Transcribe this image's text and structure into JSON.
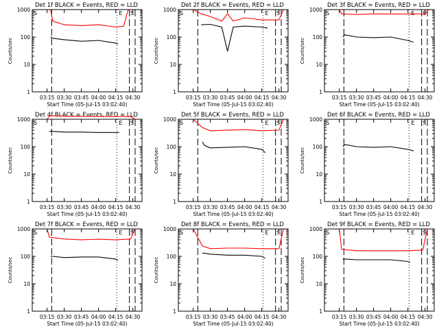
{
  "start_time_label": "Start Time (05-Jul-15 03:02:40)",
  "x_tick_labels": [
    "03:15",
    "03:30",
    "03:45",
    "04:00",
    "04:15",
    "04:30"
  ],
  "y_tick_labels": [
    "1",
    "10",
    "100",
    "1000"
  ],
  "ylabel": "Counts/sec",
  "colors": {
    "events": "#000000",
    "lld": "#ff0000"
  },
  "chart_data": [
    {
      "type": "line",
      "title": "Det 1f BLACK = Events, RED = LLD",
      "markers": {
        "S1": "S",
        "E": "E",
        "S2": "S"
      },
      "xlabel": "Start Time (05-Jul-15 03:02:40)",
      "ylabel": "Counts/sec",
      "ylim": [
        1,
        1000
      ],
      "yscale": "log",
      "series": [
        {
          "color": "red",
          "x": [
            "03:18",
            "03:20",
            "03:30",
            "03:45",
            "04:00",
            "04:15",
            "04:22",
            "04:26"
          ],
          "values": [
            1000,
            380,
            280,
            260,
            280,
            230,
            250,
            1000
          ]
        },
        {
          "color": "black",
          "x": [
            "03:18",
            "03:20",
            "03:30",
            "03:45",
            "04:00",
            "04:15",
            "04:17"
          ],
          "values": [
            100,
            90,
            80,
            70,
            75,
            60,
            55
          ]
        }
      ]
    },
    {
      "type": "line",
      "title": "Det 2f BLACK = Events, RED = LLD",
      "markers": {
        "S1": "S",
        "E": "E",
        "S2": "S"
      },
      "xlabel": "Start Time (05-Jul-15 03:02:40)",
      "ylabel": "Counts/sec",
      "ylim": [
        1,
        1000
      ],
      "yscale": "log",
      "series": [
        {
          "color": "red",
          "x": [
            "03:15",
            "03:22",
            "03:30",
            "03:40",
            "03:45",
            "03:50",
            "04:00",
            "04:15",
            "04:30",
            "04:34"
          ],
          "values": [
            1000,
            700,
            560,
            380,
            700,
            380,
            500,
            420,
            420,
            1000
          ]
        },
        {
          "color": "black",
          "x": [
            "03:22",
            "03:30",
            "03:40",
            "03:45",
            "03:50",
            "04:00",
            "04:15",
            "04:20"
          ],
          "values": [
            280,
            290,
            230,
            30,
            230,
            250,
            230,
            210
          ]
        }
      ]
    },
    {
      "type": "line",
      "title": "Det 3f BLACK = Events, RED = LLD",
      "markers": {
        "S1": "S",
        "E": "E",
        "S2": "S"
      },
      "xlabel": "Start Time (05-Jul-15 03:02:40)",
      "ylabel": "Counts/sec",
      "ylim": [
        1,
        1000
      ],
      "yscale": "log",
      "series": [
        {
          "color": "red",
          "x": [
            "03:15",
            "03:17",
            "03:30",
            "03:45",
            "04:00",
            "04:15",
            "04:30",
            "04:33"
          ],
          "values": [
            1000,
            700,
            660,
            700,
            690,
            690,
            700,
            1000
          ]
        },
        {
          "color": "black",
          "x": [
            "03:18",
            "03:20",
            "03:30",
            "03:45",
            "04:00",
            "04:15",
            "04:20"
          ],
          "values": [
            100,
            120,
            100,
            95,
            100,
            75,
            65
          ]
        }
      ]
    },
    {
      "type": "line",
      "title": "Det 4f BLACK = Events, RED = LLD",
      "markers": {
        "S1": "S",
        "E": "E",
        "S2": "S"
      },
      "xlabel": "Start Time (05-Jul-15 03:02:40)",
      "ylabel": "Counts/sec",
      "ylim": [
        1,
        1000
      ],
      "yscale": "log",
      "series": [
        {
          "color": "red",
          "x": [
            "03:15",
            "03:17",
            "03:30",
            "03:45",
            "04:00",
            "04:15",
            "04:28",
            "04:32"
          ],
          "values": [
            1000,
            1350,
            1300,
            1280,
            1270,
            1260,
            1270,
            1000
          ]
        },
        {
          "color": "black",
          "x": [
            "03:17",
            "03:30",
            "03:45",
            "04:00",
            "04:15",
            "04:18"
          ],
          "values": [
            370,
            340,
            340,
            330,
            330,
            330
          ]
        }
      ]
    },
    {
      "type": "line",
      "title": "Det 5f BLACK = Events, RED = LLD",
      "markers": {
        "S1": "S",
        "E": "E",
        "S2": "S"
      },
      "xlabel": "Start Time (05-Jul-15 03:02:40)",
      "ylabel": "Counts/sec",
      "ylim": [
        1,
        1000
      ],
      "yscale": "log",
      "series": [
        {
          "color": "red",
          "x": [
            "03:15",
            "03:23",
            "03:30",
            "03:45",
            "04:00",
            "04:15",
            "04:30",
            "04:34"
          ],
          "values": [
            1000,
            500,
            380,
            400,
            420,
            380,
            400,
            1000
          ]
        },
        {
          "color": "black",
          "x": [
            "03:23",
            "03:25",
            "03:30",
            "03:45",
            "04:00",
            "04:15",
            "04:18"
          ],
          "values": [
            150,
            110,
            90,
            95,
            100,
            80,
            60
          ]
        }
      ]
    },
    {
      "type": "line",
      "title": "Det 6f BLACK = Events, RED = LLD",
      "markers": {
        "S1": "S",
        "E": "E",
        "S2": "S"
      },
      "xlabel": "Start Time (05-Jul-15 03:02:40)",
      "ylabel": "Counts/sec",
      "ylim": [
        1,
        1000
      ],
      "yscale": "log",
      "series": [
        {
          "color": "black",
          "x": [
            "03:18",
            "03:20",
            "03:30",
            "03:45",
            "04:00",
            "04:15",
            "04:20"
          ],
          "values": [
            100,
            120,
            100,
            95,
            100,
            80,
            70
          ]
        }
      ]
    },
    {
      "type": "line",
      "title": "Det 7f BLACK = Events, RED = LLD",
      "markers": {
        "S1": "S",
        "E": "E",
        "S2": "S"
      },
      "xlabel": "Start Time (05-Jul-15 03:02:40)",
      "ylabel": "Counts/sec",
      "ylim": [
        1,
        1000
      ],
      "yscale": "log",
      "series": [
        {
          "color": "red",
          "x": [
            "03:15",
            "03:17",
            "03:30",
            "03:45",
            "04:00",
            "04:15",
            "04:28",
            "04:32"
          ],
          "values": [
            1000,
            500,
            430,
            400,
            420,
            400,
            430,
            1000
          ]
        },
        {
          "color": "black",
          "x": [
            "03:18",
            "03:20",
            "03:30",
            "03:45",
            "04:00",
            "04:15",
            "04:17"
          ],
          "values": [
            100,
            100,
            90,
            95,
            95,
            80,
            70
          ]
        }
      ]
    },
    {
      "type": "line",
      "title": "Det 8f BLACK = Events, RED = LLD",
      "markers": {
        "S1": "S",
        "E": "E",
        "S2": "S"
      },
      "xlabel": "Start Time (05-Jul-15 03:02:40)",
      "ylabel": "Counts/sec",
      "ylim": [
        1,
        1000
      ],
      "yscale": "log",
      "series": [
        {
          "color": "red",
          "x": [
            "03:15",
            "03:23",
            "03:30",
            "03:45",
            "04:00",
            "04:15",
            "04:30",
            "04:34"
          ],
          "values": [
            1000,
            240,
            190,
            200,
            200,
            190,
            190,
            1000
          ]
        },
        {
          "color": "black",
          "x": [
            "03:23",
            "03:25",
            "03:30",
            "03:45",
            "04:00",
            "04:15",
            "04:18"
          ],
          "values": [
            130,
            130,
            120,
            110,
            110,
            100,
            85
          ]
        }
      ]
    },
    {
      "type": "line",
      "title": "Det 9f BLACK = Events, RED = LLD",
      "markers": {
        "S1": "S",
        "E": "E",
        "S2": "S"
      },
      "xlabel": "Start Time (05-Jul-15 03:02:40)",
      "ylabel": "Counts/sec",
      "ylim": [
        1,
        1000
      ],
      "yscale": "log",
      "series": [
        {
          "color": "red",
          "x": [
            "03:15",
            "03:17",
            "03:30",
            "03:45",
            "04:00",
            "04:15",
            "04:28",
            "04:32"
          ],
          "values": [
            1000,
            180,
            160,
            160,
            160,
            160,
            170,
            1000
          ]
        },
        {
          "color": "black",
          "x": [
            "03:18",
            "03:20",
            "03:30",
            "03:45",
            "04:00",
            "04:15",
            "04:17"
          ],
          "values": [
            80,
            80,
            75,
            75,
            75,
            65,
            60
          ]
        }
      ]
    }
  ]
}
